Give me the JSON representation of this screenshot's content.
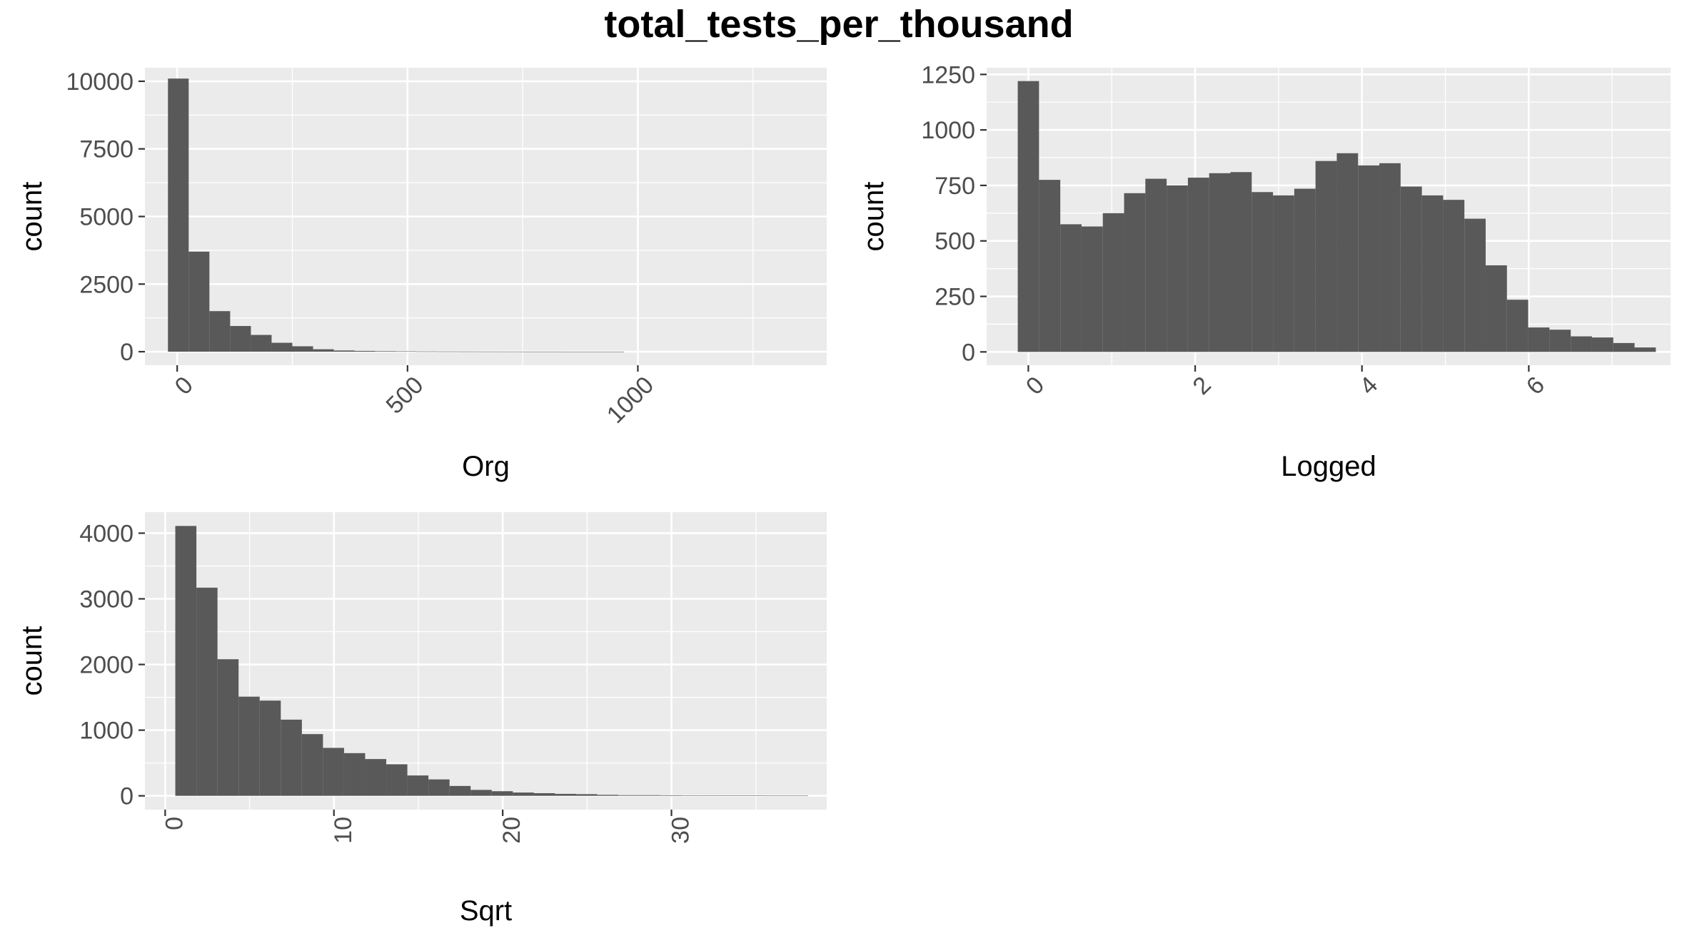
{
  "title": "total_tests_per_thousand",
  "colors": {
    "panel_background": "#ebebeb",
    "grid_line": "#ffffff",
    "bar_fill": "#595959",
    "tick_mark": "#333333",
    "tick_text": "#4d4d4d",
    "text": "#000000"
  },
  "chart_data": [
    {
      "type": "bar",
      "id": "org",
      "xlabel": "Org",
      "ylabel": "count",
      "grid": true,
      "xlim": [
        -70,
        1410
      ],
      "ylim": [
        -500,
        10500
      ],
      "x_ticks": [
        0,
        500,
        1000
      ],
      "x_tick_labels": [
        "0",
        "500",
        "1000"
      ],
      "x_tick_angle": -45,
      "y_ticks": [
        0,
        2500,
        5000,
        7500,
        10000
      ],
      "y_tick_labels": [
        "0",
        "2500",
        "5000",
        "7500",
        "10000"
      ],
      "bin_width": 45,
      "bin_start": -20,
      "values": [
        10100,
        3700,
        1500,
        950,
        620,
        330,
        200,
        90,
        45,
        30,
        20,
        15,
        10,
        8,
        6,
        5,
        4,
        3,
        3,
        2,
        2,
        2,
        0,
        0,
        0,
        0,
        0,
        0,
        0,
        0
      ]
    },
    {
      "type": "bar",
      "id": "logged",
      "xlabel": "Logged",
      "ylabel": "count",
      "grid": true,
      "xlim": [
        -0.5,
        7.7
      ],
      "ylim": [
        -60,
        1280
      ],
      "x_ticks": [
        0,
        2,
        4,
        6
      ],
      "x_tick_labels": [
        "0",
        "2",
        "4",
        "6"
      ],
      "x_tick_angle": -45,
      "y_ticks": [
        0,
        250,
        500,
        750,
        1000,
        1250
      ],
      "y_tick_labels": [
        "0",
        "250",
        "500",
        "750",
        "1000",
        "1250"
      ],
      "bin_width": 0.255,
      "bin_start": -0.127,
      "values": [
        1220,
        775,
        575,
        565,
        625,
        715,
        780,
        750,
        785,
        805,
        810,
        720,
        705,
        735,
        860,
        895,
        840,
        850,
        745,
        705,
        685,
        600,
        390,
        235,
        110,
        100,
        70,
        65,
        40,
        20
      ]
    },
    {
      "type": "bar",
      "id": "sqrt",
      "xlabel": "Sqrt",
      "ylabel": "count",
      "grid": true,
      "xlim": [
        -1.2,
        39.2
      ],
      "ylim": [
        -210,
        4320
      ],
      "x_ticks": [
        0,
        10,
        20,
        30
      ],
      "x_tick_labels": [
        "0",
        "10",
        "20",
        "30"
      ],
      "x_tick_angle": -90,
      "y_ticks": [
        0,
        1000,
        2000,
        3000,
        4000
      ],
      "y_tick_labels": [
        "0",
        "1000",
        "2000",
        "3000",
        "4000"
      ],
      "bin_width": 1.25,
      "bin_start": 0.6,
      "values": [
        4110,
        3170,
        2080,
        1510,
        1450,
        1160,
        940,
        730,
        650,
        560,
        480,
        310,
        250,
        150,
        90,
        70,
        50,
        40,
        30,
        25,
        15,
        10,
        10,
        8,
        5,
        5,
        4,
        3,
        2,
        2
      ]
    }
  ]
}
